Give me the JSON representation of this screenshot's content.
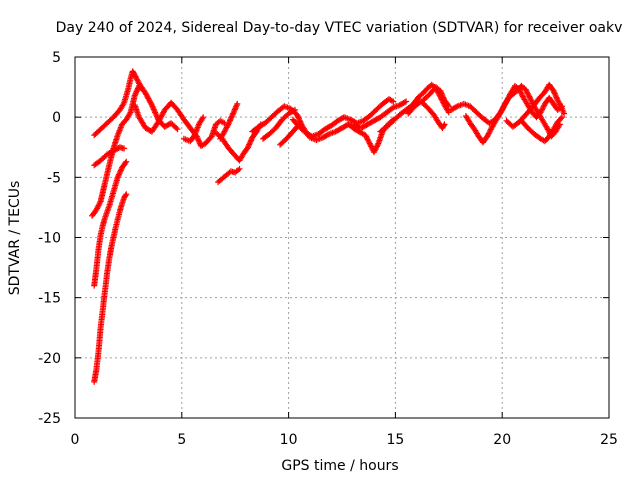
{
  "chart_data": {
    "type": "scatter",
    "title": "Day 240 of 2024, Sidereal Day-to-day VTEC variation (SDTVAR) for receiver oakv",
    "xlabel": "GPS time / hours",
    "ylabel": "SDTVAR / TECUs",
    "xlim": [
      0,
      25
    ],
    "ylim": [
      -25,
      5
    ],
    "xticks": [
      0,
      5,
      10,
      15,
      20,
      25
    ],
    "yticks": [
      5,
      0,
      -5,
      -10,
      -15,
      -20,
      -25
    ],
    "grid": true,
    "marker": "+",
    "series": [
      {
        "name": "SDTVAR",
        "color": "#ff0000",
        "tracks": [
          [
            [
              0.9,
              -1.5
            ],
            [
              1.2,
              -1.0
            ],
            [
              1.5,
              -0.5
            ],
            [
              1.8,
              0.0
            ],
            [
              2.1,
              0.6
            ],
            [
              2.3,
              1.2
            ],
            [
              2.5,
              2.4
            ],
            [
              2.6,
              3.2
            ],
            [
              2.7,
              3.8
            ],
            [
              2.8,
              3.5
            ],
            [
              3.0,
              2.8
            ],
            [
              3.3,
              2.0
            ],
            [
              3.6,
              1.0
            ],
            [
              3.9,
              -0.2
            ],
            [
              4.2,
              -0.8
            ],
            [
              4.5,
              -0.5
            ],
            [
              4.8,
              -1.0
            ]
          ],
          [
            [
              0.9,
              -4.0
            ],
            [
              1.2,
              -3.6
            ],
            [
              1.5,
              -3.1
            ],
            [
              1.8,
              -2.8
            ],
            [
              2.1,
              -2.5
            ],
            [
              2.3,
              -2.6
            ]
          ],
          [
            [
              0.8,
              -8.2
            ],
            [
              1.0,
              -7.7
            ],
            [
              1.2,
              -7.0
            ],
            [
              1.4,
              -5.5
            ],
            [
              1.6,
              -4.0
            ],
            [
              1.8,
              -2.6
            ],
            [
              2.0,
              -1.5
            ],
            [
              2.2,
              -0.6
            ],
            [
              2.4,
              -0.2
            ],
            [
              2.6,
              0.4
            ],
            [
              2.8,
              1.8
            ],
            [
              3.0,
              2.6
            ],
            [
              3.2,
              2.2
            ]
          ],
          [
            [
              0.9,
              -14.0
            ],
            [
              1.0,
              -12.6
            ],
            [
              1.1,
              -11.0
            ],
            [
              1.2,
              -9.8
            ],
            [
              1.3,
              -9.0
            ],
            [
              1.4,
              -8.4
            ],
            [
              1.6,
              -7.4
            ],
            [
              1.8,
              -6.2
            ],
            [
              2.0,
              -5.0
            ],
            [
              2.2,
              -4.2
            ],
            [
              2.4,
              -3.7
            ]
          ],
          [
            [
              0.9,
              -22.0
            ],
            [
              1.0,
              -21.0
            ],
            [
              1.1,
              -19.5
            ],
            [
              1.2,
              -17.5
            ],
            [
              1.3,
              -16.0
            ],
            [
              1.4,
              -14.5
            ],
            [
              1.5,
              -13.0
            ],
            [
              1.6,
              -11.8
            ],
            [
              1.7,
              -10.8
            ],
            [
              1.8,
              -10.0
            ],
            [
              1.9,
              -9.2
            ],
            [
              2.0,
              -8.5
            ],
            [
              2.1,
              -7.8
            ],
            [
              2.2,
              -7.2
            ],
            [
              2.3,
              -6.7
            ],
            [
              2.4,
              -6.4
            ]
          ],
          [
            [
              2.8,
              1.0
            ],
            [
              3.0,
              0.0
            ],
            [
              3.3,
              -0.9
            ],
            [
              3.6,
              -1.2
            ],
            [
              3.9,
              -0.4
            ],
            [
              4.2,
              0.6
            ],
            [
              4.5,
              1.2
            ],
            [
              4.8,
              0.6
            ],
            [
              5.1,
              -0.2
            ],
            [
              5.4,
              -0.9
            ],
            [
              5.7,
              -1.6
            ],
            [
              5.9,
              -2.4
            ],
            [
              6.1,
              -2.2
            ],
            [
              6.4,
              -1.6
            ],
            [
              6.6,
              -0.6
            ],
            [
              6.8,
              -0.3
            ],
            [
              7.0,
              -0.5
            ]
          ],
          [
            [
              5.1,
              -1.8
            ],
            [
              5.4,
              -2.0
            ],
            [
              5.6,
              -1.5
            ],
            [
              5.8,
              -0.6
            ],
            [
              6.0,
              0.0
            ]
          ],
          [
            [
              6.6,
              -1.3
            ],
            [
              6.9,
              -1.8
            ],
            [
              7.2,
              -2.6
            ],
            [
              7.5,
              -3.2
            ],
            [
              7.7,
              -3.6
            ],
            [
              7.9,
              -3.0
            ],
            [
              8.1,
              -2.5
            ],
            [
              8.3,
              -1.7
            ],
            [
              8.5,
              -1.2
            ],
            [
              8.7,
              -0.6
            ]
          ],
          [
            [
              6.7,
              -5.4
            ],
            [
              6.9,
              -5.1
            ],
            [
              7.1,
              -4.8
            ],
            [
              7.3,
              -4.5
            ],
            [
              7.5,
              -4.6
            ],
            [
              7.7,
              -4.3
            ]
          ],
          [
            [
              6.8,
              -1.8
            ],
            [
              7.0,
              -1.2
            ],
            [
              7.2,
              -0.5
            ],
            [
              7.4,
              0.3
            ],
            [
              7.6,
              1.1
            ]
          ],
          [
            [
              8.3,
              -1.2
            ],
            [
              8.6,
              -0.8
            ],
            [
              8.9,
              -0.5
            ],
            [
              9.2,
              0.0
            ],
            [
              9.5,
              0.5
            ],
            [
              9.8,
              0.9
            ],
            [
              10.1,
              0.7
            ],
            [
              10.4,
              0.2
            ],
            [
              10.6,
              -0.6
            ],
            [
              10.8,
              -1.2
            ],
            [
              11.0,
              -1.7
            ],
            [
              11.3,
              -1.9
            ],
            [
              11.6,
              -1.7
            ],
            [
              11.9,
              -1.4
            ],
            [
              12.2,
              -1.2
            ],
            [
              12.5,
              -0.9
            ],
            [
              12.8,
              -0.6
            ],
            [
              13.1,
              -1.0
            ],
            [
              13.4,
              -1.3
            ],
            [
              13.6,
              -1.5
            ],
            [
              13.8,
              -2.2
            ],
            [
              14.0,
              -2.9
            ],
            [
              14.2,
              -2.2
            ],
            [
              14.4,
              -1.2
            ],
            [
              14.6,
              -0.7
            ],
            [
              14.9,
              -0.2
            ]
          ],
          [
            [
              8.8,
              -1.8
            ],
            [
              9.1,
              -1.4
            ],
            [
              9.4,
              -0.9
            ],
            [
              9.7,
              -0.2
            ],
            [
              10.0,
              0.3
            ],
            [
              10.3,
              0.6
            ]
          ],
          [
            [
              9.6,
              -2.3
            ],
            [
              9.9,
              -1.8
            ],
            [
              10.2,
              -1.2
            ],
            [
              10.5,
              -0.6
            ]
          ],
          [
            [
              10.2,
              -0.2
            ],
            [
              10.5,
              -0.8
            ],
            [
              10.8,
              -1.3
            ],
            [
              11.1,
              -1.6
            ],
            [
              11.4,
              -1.4
            ],
            [
              11.7,
              -1.0
            ],
            [
              12.0,
              -0.7
            ],
            [
              12.3,
              -0.3
            ],
            [
              12.6,
              0.0
            ],
            [
              12.9,
              -0.2
            ],
            [
              13.2,
              -0.5
            ],
            [
              13.5,
              -0.3
            ],
            [
              13.8,
              0.1
            ],
            [
              14.1,
              0.6
            ],
            [
              14.4,
              1.1
            ],
            [
              14.7,
              1.5
            ],
            [
              14.9,
              1.3
            ]
          ],
          [
            [
              12.8,
              -0.6
            ],
            [
              13.1,
              -0.7
            ],
            [
              13.4,
              -0.9
            ],
            [
              13.7,
              -0.6
            ],
            [
              14.0,
              -0.3
            ],
            [
              14.3,
              0.0
            ],
            [
              14.6,
              0.4
            ],
            [
              14.9,
              0.8
            ],
            [
              15.2,
              1.0
            ],
            [
              15.5,
              1.3
            ]
          ],
          [
            [
              14.3,
              -1.2
            ],
            [
              14.6,
              -0.8
            ],
            [
              14.9,
              -0.3
            ],
            [
              15.2,
              0.2
            ],
            [
              15.5,
              0.6
            ],
            [
              15.8,
              1.0
            ],
            [
              16.1,
              1.7
            ],
            [
              16.3,
              2.0
            ],
            [
              16.5,
              2.4
            ],
            [
              16.7,
              2.7
            ],
            [
              16.9,
              2.4
            ],
            [
              17.1,
              1.7
            ],
            [
              17.3,
              1.0
            ],
            [
              17.5,
              0.4
            ]
          ],
          [
            [
              15.6,
              0.3
            ],
            [
              15.9,
              0.9
            ],
            [
              16.2,
              1.3
            ],
            [
              16.5,
              0.8
            ],
            [
              16.8,
              0.2
            ],
            [
              17.0,
              -0.4
            ],
            [
              17.2,
              -0.9
            ],
            [
              17.3,
              -0.6
            ]
          ],
          [
            [
              16.3,
              1.4
            ],
            [
              16.6,
              1.9
            ],
            [
              16.9,
              2.5
            ],
            [
              17.1,
              2.2
            ],
            [
              17.3,
              1.4
            ],
            [
              17.5,
              0.9
            ]
          ],
          [
            [
              17.6,
              0.6
            ],
            [
              17.9,
              0.9
            ],
            [
              18.2,
              1.1
            ],
            [
              18.5,
              0.9
            ],
            [
              18.8,
              0.4
            ],
            [
              19.1,
              -0.1
            ],
            [
              19.4,
              -0.5
            ],
            [
              19.6,
              -0.3
            ],
            [
              19.8,
              0.1
            ],
            [
              20.0,
              0.6
            ],
            [
              20.2,
              1.3
            ],
            [
              20.4,
              2.0
            ],
            [
              20.6,
              2.6
            ],
            [
              20.8,
              2.3
            ],
            [
              21.0,
              1.6
            ],
            [
              21.2,
              1.0
            ],
            [
              21.4,
              0.4
            ],
            [
              21.6,
              0.0
            ],
            [
              21.8,
              0.4
            ],
            [
              22.0,
              1.1
            ],
            [
              22.2,
              1.6
            ],
            [
              22.4,
              1.1
            ],
            [
              22.6,
              0.6
            ],
            [
              22.8,
              0.9
            ]
          ],
          [
            [
              18.3,
              0.1
            ],
            [
              18.5,
              -0.5
            ],
            [
              18.7,
              -1.0
            ],
            [
              18.9,
              -1.6
            ],
            [
              19.1,
              -2.1
            ],
            [
              19.3,
              -1.6
            ],
            [
              19.5,
              -0.9
            ],
            [
              19.7,
              -0.3
            ],
            [
              19.9,
              0.3
            ],
            [
              20.1,
              1.0
            ],
            [
              20.3,
              1.6
            ],
            [
              20.5,
              1.9
            ],
            [
              20.7,
              2.2
            ],
            [
              20.9,
              2.6
            ],
            [
              21.1,
              2.3
            ],
            [
              21.3,
              1.6
            ],
            [
              21.5,
              0.9
            ],
            [
              21.7,
              0.3
            ],
            [
              21.9,
              -0.3
            ],
            [
              22.1,
              -0.9
            ],
            [
              22.3,
              -1.6
            ],
            [
              22.5,
              -1.2
            ],
            [
              22.7,
              -0.6
            ]
          ],
          [
            [
              20.2,
              -0.3
            ],
            [
              20.5,
              -0.8
            ],
            [
              20.8,
              -0.4
            ],
            [
              21.1,
              0.2
            ],
            [
              21.4,
              0.8
            ],
            [
              21.7,
              1.5
            ],
            [
              22.0,
              2.1
            ],
            [
              22.2,
              2.7
            ],
            [
              22.4,
              2.2
            ],
            [
              22.6,
              1.4
            ],
            [
              22.8,
              0.7
            ],
            [
              22.9,
              0.3
            ]
          ],
          [
            [
              20.9,
              -0.3
            ],
            [
              21.2,
              -0.9
            ],
            [
              21.5,
              -1.4
            ],
            [
              21.8,
              -1.8
            ],
            [
              22.0,
              -2.0
            ],
            [
              22.2,
              -1.6
            ],
            [
              22.4,
              -1.0
            ],
            [
              22.6,
              -0.4
            ],
            [
              22.8,
              0.0
            ]
          ]
        ]
      }
    ]
  }
}
